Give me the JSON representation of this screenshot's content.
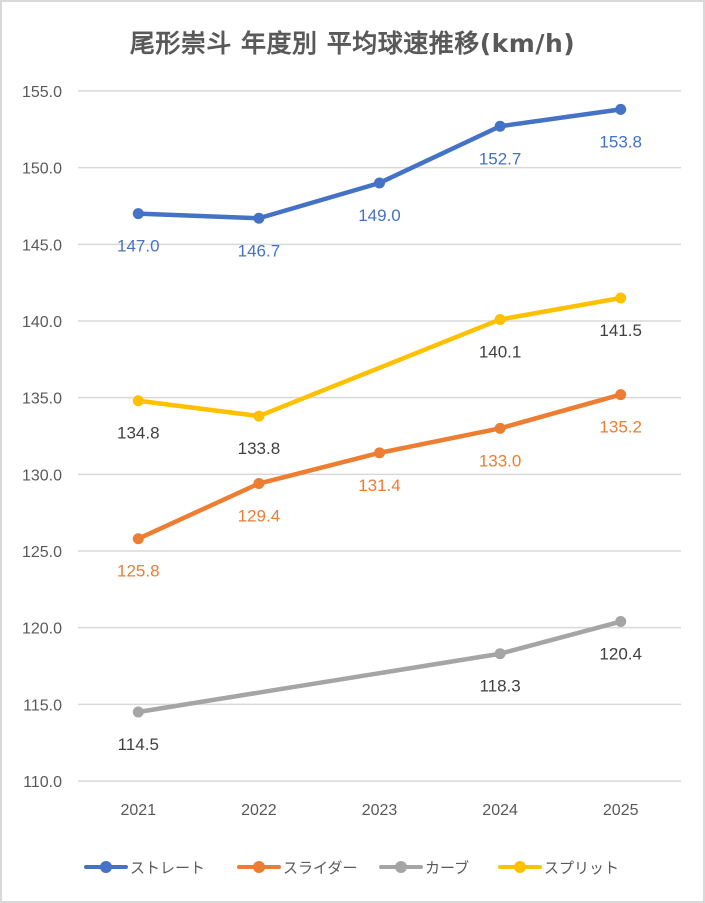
{
  "chart_data": {
    "type": "line",
    "title": "尾形崇斗 年度別 平均球速推移(km/h)",
    "xlabel": "",
    "ylabel": "",
    "categories": [
      "2021",
      "2022",
      "2023",
      "2024",
      "2025"
    ],
    "ylim": [
      110.0,
      155.0
    ],
    "yticks": [
      "110.0",
      "115.0",
      "120.0",
      "125.0",
      "130.0",
      "135.0",
      "140.0",
      "145.0",
      "150.0",
      "155.0"
    ],
    "grid": true,
    "legend_position": "bottom",
    "series": [
      {
        "name": "ストレート",
        "color": "#4472c4",
        "label_color": "#4472c4",
        "values": [
          147.0,
          146.7,
          149.0,
          152.7,
          153.8
        ],
        "labels": [
          "147.0",
          "146.7",
          "149.0",
          "152.7",
          "153.8"
        ]
      },
      {
        "name": "スライダー",
        "color": "#ed7d31",
        "label_color": "#ed7d31",
        "values": [
          125.8,
          129.4,
          131.4,
          133.0,
          135.2
        ],
        "labels": [
          "125.8",
          "129.4",
          "131.4",
          "133.0",
          "135.2"
        ]
      },
      {
        "name": "カーブ",
        "color": "#a5a5a5",
        "label_color": "#404040",
        "values": [
          114.5,
          null,
          null,
          118.3,
          120.4
        ],
        "labels": [
          "114.5",
          null,
          null,
          "118.3",
          "120.4"
        ]
      },
      {
        "name": "スプリット",
        "color": "#ffc000",
        "label_color": "#404040",
        "values": [
          134.8,
          133.8,
          null,
          140.1,
          141.5
        ],
        "labels": [
          "134.8",
          "133.8",
          null,
          "140.1",
          "141.5"
        ]
      }
    ]
  }
}
